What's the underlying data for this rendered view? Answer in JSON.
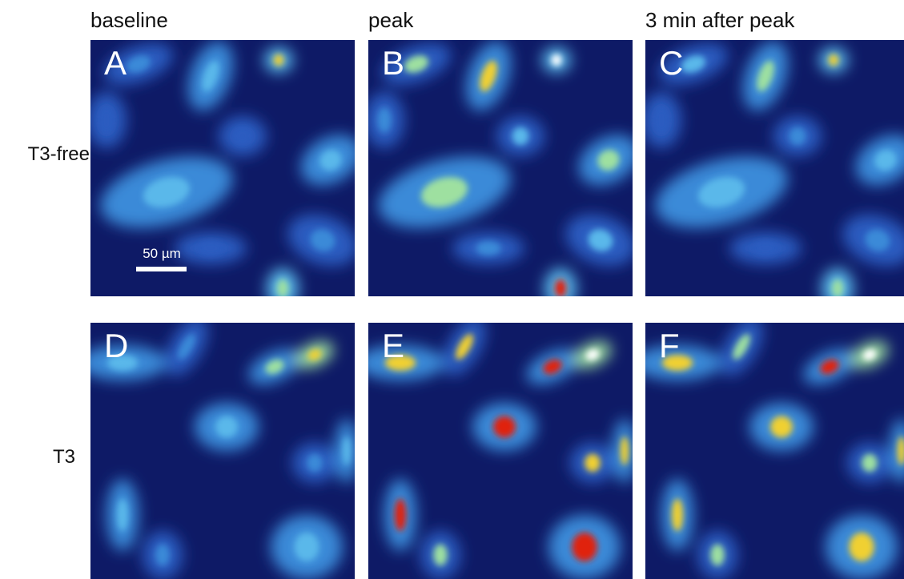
{
  "header": {
    "columns": [
      "baseline",
      "peak",
      "3 min after peak"
    ],
    "rows": [
      "T3-free",
      "T3"
    ]
  },
  "panels": [
    "A",
    "B",
    "C",
    "D",
    "E",
    "F"
  ],
  "scale_bar": "50 µm"
}
